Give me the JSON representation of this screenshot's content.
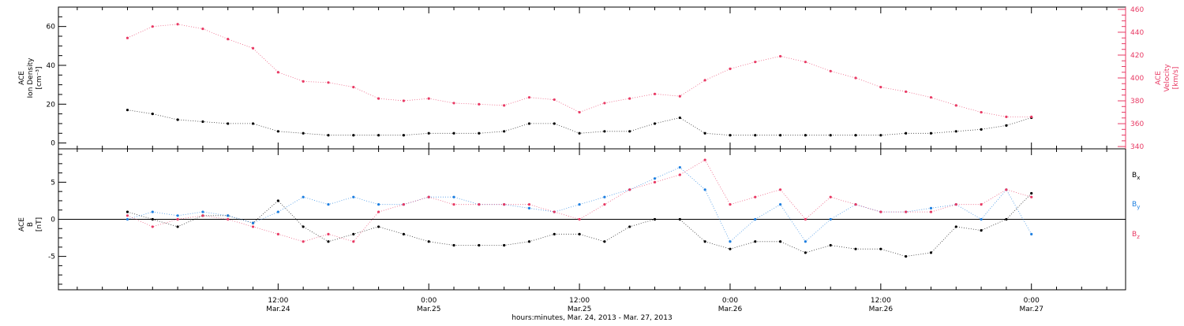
{
  "colors": {
    "red": "#e83a64",
    "blue": "#1e7fe0",
    "black": "#000000"
  },
  "chart_data": [
    {
      "type": "scatter",
      "panel": "top",
      "title": "",
      "left_axis": {
        "label_lines": [
          "ACE",
          "Ion Density",
          "[cm⁻³]"
        ],
        "range": [
          -3,
          70
        ],
        "ticks": [
          0,
          20,
          40,
          60
        ],
        "tick_labels": [
          "0",
          "20",
          "40",
          "60"
        ]
      },
      "right_axis": {
        "label_lines": [
          "ACE",
          "Velocity",
          "[km/s]"
        ],
        "range": [
          338,
          462
        ],
        "ticks": [
          340,
          360,
          380,
          400,
          420,
          440,
          460
        ],
        "tick_labels": [
          "340",
          "360",
          "380",
          "400",
          "420",
          "440",
          "460"
        ],
        "color": "#e83a64"
      },
      "series": [
        {
          "axis": "left",
          "color": "#000000",
          "hours": [
            0,
            2,
            4,
            6,
            8,
            10,
            12,
            14,
            16,
            18,
            20,
            22,
            24,
            26,
            28,
            30,
            32,
            34,
            36,
            38,
            40,
            42,
            44,
            46,
            48,
            50,
            52,
            54,
            56,
            58,
            60,
            62,
            64,
            66,
            68,
            70,
            72
          ],
          "values": [
            17,
            15,
            12,
            11,
            10,
            10,
            6,
            5,
            4,
            4,
            4,
            4,
            5,
            5,
            5,
            6,
            10,
            10,
            5,
            6,
            6,
            10,
            13,
            5,
            4,
            4,
            4,
            4,
            4,
            4,
            4,
            5,
            5,
            6,
            7,
            9,
            13
          ]
        },
        {
          "axis": "right",
          "color": "#e83a64",
          "hours": [
            0,
            2,
            4,
            6,
            8,
            10,
            12,
            14,
            16,
            18,
            20,
            22,
            24,
            26,
            28,
            30,
            32,
            34,
            36,
            38,
            40,
            42,
            44,
            46,
            48,
            50,
            52,
            54,
            56,
            58,
            60,
            62,
            64,
            66,
            68,
            70,
            72
          ],
          "values": [
            435,
            445,
            447,
            443,
            434,
            426,
            405,
            397,
            396,
            392,
            382,
            380,
            382,
            378,
            377,
            376,
            383,
            381,
            370,
            378,
            382,
            386,
            384,
            398,
            408,
            414,
            419,
            414,
            406,
            400,
            392,
            388,
            383,
            376,
            370,
            366,
            366
          ]
        }
      ]
    },
    {
      "type": "scatter",
      "panel": "bottom",
      "title": "",
      "left_axis": {
        "label_lines": [
          "ACE",
          "B",
          "[nT]"
        ],
        "range": [
          -9.5,
          9.5
        ],
        "ticks": [
          -5,
          0,
          5
        ],
        "tick_labels": [
          "-5",
          "0",
          "5"
        ]
      },
      "legend": [
        "Bx",
        "By",
        "Bz"
      ],
      "series": [
        {
          "name": "Bx",
          "color": "#000000",
          "hours": [
            0,
            2,
            4,
            6,
            8,
            10,
            12,
            14,
            16,
            18,
            20,
            22,
            24,
            26,
            28,
            30,
            32,
            34,
            36,
            38,
            40,
            42,
            44,
            46,
            48,
            50,
            52,
            54,
            56,
            58,
            60,
            62,
            64,
            66,
            68,
            70,
            72
          ],
          "values": [
            1,
            0,
            -1,
            0.5,
            0.5,
            -0.5,
            2.5,
            -1,
            -3,
            -2,
            -1,
            -2,
            -3,
            -3.5,
            -3.5,
            -3.5,
            -3,
            -2,
            -2,
            -3,
            -1,
            0,
            0,
            -3,
            -4,
            -3,
            -3,
            -4.5,
            -3.5,
            -4,
            -4,
            -5,
            -4.5,
            -1,
            -1.5,
            0,
            3.5
          ]
        },
        {
          "name": "By",
          "color": "#1e7fe0",
          "hours": [
            0,
            2,
            4,
            6,
            8,
            10,
            12,
            14,
            16,
            18,
            20,
            22,
            24,
            26,
            28,
            30,
            32,
            34,
            36,
            38,
            40,
            42,
            44,
            46,
            48,
            50,
            52,
            54,
            56,
            58,
            60,
            62,
            64,
            66,
            68,
            70,
            72
          ],
          "values": [
            0,
            1,
            0.5,
            1,
            0.5,
            -0.5,
            1,
            3,
            2,
            3,
            2,
            2,
            3,
            3,
            2,
            2,
            1.5,
            1,
            2,
            3,
            4,
            5.5,
            7,
            4,
            -3,
            0,
            2,
            -3,
            0,
            2,
            1,
            1,
            1.5,
            2,
            0,
            4,
            -2
          ]
        },
        {
          "name": "Bz",
          "color": "#e83a64",
          "hours": [
            0,
            2,
            4,
            6,
            8,
            10,
            12,
            14,
            16,
            18,
            20,
            22,
            24,
            26,
            28,
            30,
            32,
            34,
            36,
            38,
            40,
            42,
            44,
            46,
            48,
            50,
            52,
            54,
            56,
            58,
            60,
            62,
            64,
            66,
            68,
            70,
            72
          ],
          "values": [
            0.5,
            -1,
            0,
            0.5,
            0,
            -1,
            -2,
            -3,
            -2,
            -3,
            1,
            2,
            3,
            2,
            2,
            2,
            2,
            1,
            0,
            2,
            4,
            5,
            6,
            8,
            2,
            3,
            4,
            0,
            3,
            2,
            1,
            1,
            1,
            2,
            2,
            4,
            3
          ]
        }
      ]
    }
  ],
  "x_axis": {
    "hours_start": -5.5,
    "hours_end": 79.5,
    "major_ticks": [
      {
        "hour": 12,
        "time": "12:00",
        "date": "Mar.24"
      },
      {
        "hour": 24,
        "time": "0:00",
        "date": "Mar.25"
      },
      {
        "hour": 36,
        "time": "12:00",
        "date": "Mar.25"
      },
      {
        "hour": 48,
        "time": "0:00",
        "date": "Mar.26"
      },
      {
        "hour": 60,
        "time": "12:00",
        "date": "Mar.26"
      },
      {
        "hour": 72,
        "time": "0:00",
        "date": "Mar.27"
      }
    ],
    "minor_step_hours": 2,
    "title": "hours:minutes, Mar. 24, 2013 - Mar. 27, 2013"
  }
}
